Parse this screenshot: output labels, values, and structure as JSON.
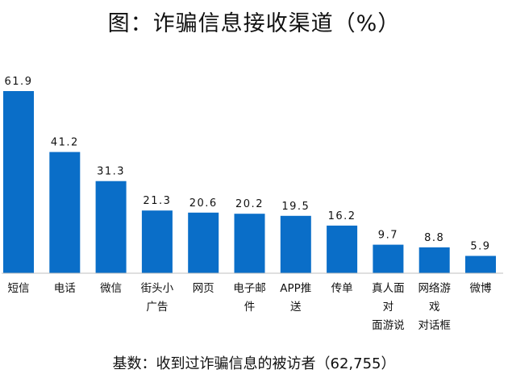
{
  "chart_data": {
    "type": "bar",
    "title": "图：诈骗信息接收渠道（%）",
    "categories": [
      [
        "短信"
      ],
      [
        "电话"
      ],
      [
        "微信"
      ],
      [
        "街头小",
        "广告"
      ],
      [
        "网页"
      ],
      [
        "电子邮",
        "件"
      ],
      [
        "APP推",
        "送"
      ],
      [
        "传单"
      ],
      [
        "真人面",
        "对",
        "面游说"
      ],
      [
        "网络游",
        "戏",
        "对话框"
      ],
      [
        "微博"
      ]
    ],
    "values": [
      61.9,
      41.2,
      31.3,
      21.3,
      20.6,
      20.2,
      19.5,
      16.2,
      9.7,
      8.8,
      5.9
    ],
    "value_labels": [
      "61.9",
      "41.2",
      "31.3",
      "21.3",
      "20.6",
      "20.2",
      "19.5",
      "16.2",
      "9.7",
      "8.8",
      "5.9"
    ],
    "ylim": [
      0,
      61.9
    ],
    "bar_color": "#0a6ec8",
    "grid": false,
    "legend": "none",
    "footnote": "基数：收到过诈骗信息的被访者（62,755）"
  }
}
